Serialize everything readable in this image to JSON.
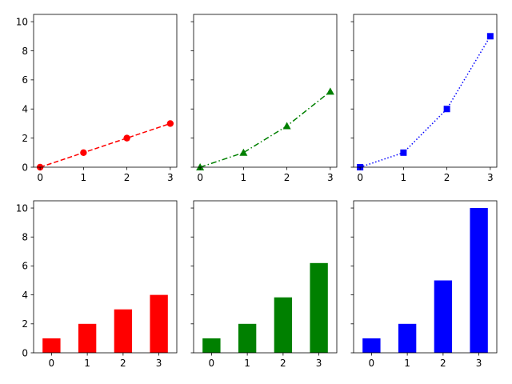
{
  "chart_data": [
    {
      "type": "line",
      "x": [
        0,
        1,
        2,
        3
      ],
      "y": [
        0,
        1,
        2,
        3
      ],
      "xticks": [
        0,
        1,
        2,
        3
      ],
      "yticks": [
        0,
        2,
        4,
        6,
        8,
        10
      ],
      "ylim": [
        0,
        10.5
      ],
      "style": {
        "color": "#ff0000",
        "linestyle": "dashed",
        "marker": "circle"
      },
      "show_ytick_labels": true
    },
    {
      "type": "line",
      "x": [
        0,
        1,
        2,
        3
      ],
      "y": [
        0,
        1,
        2.83,
        5.2
      ],
      "xticks": [
        0,
        1,
        2,
        3
      ],
      "yticks": [
        0,
        2,
        4,
        6,
        8,
        10
      ],
      "ylim": [
        0,
        10.5
      ],
      "style": {
        "color": "#008000",
        "linestyle": "dashdot",
        "marker": "triangle"
      },
      "show_ytick_labels": false
    },
    {
      "type": "line",
      "x": [
        0,
        1,
        2,
        3
      ],
      "y": [
        0,
        1,
        4,
        9
      ],
      "xticks": [
        0,
        1,
        2,
        3
      ],
      "yticks": [
        0,
        2,
        4,
        6,
        8,
        10
      ],
      "ylim": [
        0,
        10.5
      ],
      "style": {
        "color": "#0000ff",
        "linestyle": "dotted",
        "marker": "square"
      },
      "show_ytick_labels": false
    },
    {
      "type": "bar",
      "categories": [
        "0",
        "1",
        "2",
        "3"
      ],
      "values": [
        1,
        2,
        3,
        4
      ],
      "yticks": [
        0,
        2,
        4,
        6,
        8,
        10
      ],
      "ylim": [
        0,
        10.5
      ],
      "style": {
        "color": "#ff0000"
      },
      "show_ytick_labels": true
    },
    {
      "type": "bar",
      "categories": [
        "0",
        "1",
        "2",
        "3"
      ],
      "values": [
        1,
        2,
        3.83,
        6.2
      ],
      "yticks": [
        0,
        2,
        4,
        6,
        8,
        10
      ],
      "ylim": [
        0,
        10.5
      ],
      "style": {
        "color": "#008000"
      },
      "show_ytick_labels": false
    },
    {
      "type": "bar",
      "categories": [
        "0",
        "1",
        "2",
        "3"
      ],
      "values": [
        1,
        2,
        5,
        10
      ],
      "yticks": [
        0,
        2,
        4,
        6,
        8,
        10
      ],
      "ylim": [
        0,
        10.5
      ],
      "style": {
        "color": "#0000ff"
      },
      "show_ytick_labels": false
    }
  ]
}
